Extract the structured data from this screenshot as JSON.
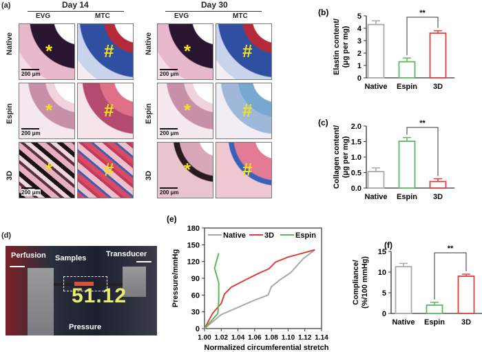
{
  "panel_a": {
    "label": "(a)",
    "days": [
      "Day 14",
      "Day 30"
    ],
    "stains": [
      "EVG",
      "MTC"
    ],
    "rows": [
      "Native",
      "Espin",
      "3D"
    ],
    "markers": {
      "EVG": "*",
      "MTC": "#"
    },
    "scale_bar": "200 μm"
  },
  "panel_d": {
    "label": "(d)",
    "labels": {
      "perfusion": "Perfusion",
      "samples": "Samples",
      "transducer": "Transducer",
      "pressure": "Pressure"
    },
    "readout": "51.12"
  },
  "colors": {
    "Native": "#a8a8a8",
    "Espin": "#5cb85c",
    "3D": "#e03c3c"
  },
  "chart_data": [
    {
      "id": "b",
      "label": "(b)",
      "type": "bar",
      "categories": [
        "Native",
        "Espin",
        "3D"
      ],
      "values": [
        4.3,
        1.3,
        3.6
      ],
      "errors": [
        0.3,
        0.3,
        0.2
      ],
      "ylabel": [
        "Elastin content/",
        "(μg per mg)"
      ],
      "ylim": [
        0,
        5
      ],
      "yticks": [
        "0",
        "1",
        "2",
        "3",
        "4",
        "5"
      ],
      "significance": {
        "pair": [
          "Espin",
          "3D"
        ],
        "text": "**"
      }
    },
    {
      "id": "c",
      "label": "(c)",
      "type": "bar",
      "categories": [
        "Native",
        "Espin",
        "3D"
      ],
      "values": [
        0.53,
        1.51,
        0.21
      ],
      "errors": [
        0.12,
        0.12,
        0.09
      ],
      "ylabel": [
        "Collagen content/",
        "(μg per mg)"
      ],
      "ylim": [
        0,
        2
      ],
      "yticks": [
        "0.0",
        "0.5",
        "1.0",
        "1.5",
        "2.0"
      ],
      "significance": {
        "pair": [
          "Espin",
          "3D"
        ],
        "text": "**"
      }
    },
    {
      "id": "e",
      "label": "(e)",
      "type": "line",
      "xlabel": "Normalized circumferential stretch",
      "ylabel": "Pressure/mmHg",
      "xlim": [
        1.0,
        1.14
      ],
      "ylim": [
        0,
        180
      ],
      "xticks": [
        "1.00",
        "1.02",
        "1.04",
        "1.06",
        "1.08",
        "1.10",
        "1.12",
        "1.14"
      ],
      "yticks": [
        "0",
        "30",
        "60",
        "90",
        "120",
        "150",
        "180"
      ],
      "legend": "top",
      "series": [
        {
          "name": "Native",
          "x": [
            1.0,
            1.02,
            1.04,
            1.06,
            1.076,
            1.08,
            1.09,
            1.103,
            1.118,
            1.132
          ],
          "y": [
            0,
            25,
            38,
            51,
            60,
            75,
            87,
            100,
            125,
            141
          ]
        },
        {
          "name": "3D",
          "x": [
            1.0,
            1.01,
            1.02,
            1.024,
            1.032,
            1.05,
            1.065,
            1.077,
            1.085,
            1.1,
            1.115,
            1.132
          ],
          "y": [
            0,
            28,
            45,
            62,
            74,
            88,
            99,
            107,
            119,
            128,
            134,
            141
          ]
        },
        {
          "name": "Espin",
          "x": [
            1.0,
            1.016,
            1.017,
            1.017,
            1.012,
            1.017
          ],
          "y": [
            0,
            27,
            50,
            82,
            108,
            135
          ]
        }
      ]
    },
    {
      "id": "f",
      "label": "(f)",
      "type": "bar",
      "categories": [
        "Native",
        "Espin",
        "3D"
      ],
      "values": [
        11.3,
        2.0,
        9.0
      ],
      "errors": [
        0.8,
        0.7,
        0.5
      ],
      "ylabel": [
        "Compliance/",
        "(%/100 mmHg)"
      ],
      "ylim": [
        0,
        15
      ],
      "yticks": [
        "0",
        "5",
        "10",
        "15"
      ],
      "significance": {
        "pair": [
          "Espin",
          "3D"
        ],
        "text": "**"
      }
    }
  ]
}
